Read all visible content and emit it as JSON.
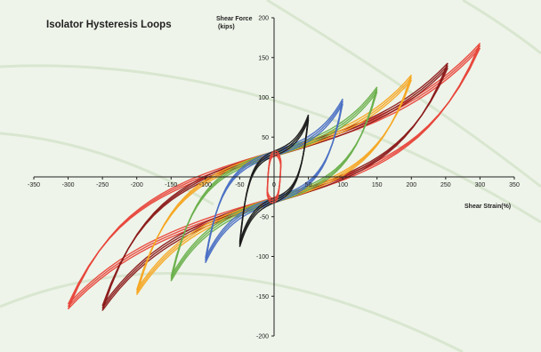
{
  "chart_data": {
    "type": "line",
    "title": "Isolator Hysteresis Loops",
    "xlabel": "Shear Strain(%)",
    "ylabel_line1": "Shear Force",
    "ylabel_line2": "(kips)",
    "xlim": [
      -350,
      350
    ],
    "ylim": [
      -200,
      200
    ],
    "x_ticks": [
      "-350",
      "-300",
      "-250",
      "-200",
      "-150",
      "-100",
      "-50",
      "0",
      "50",
      "100",
      "150",
      "200",
      "250",
      "300",
      "350"
    ],
    "y_ticks": [
      "-200",
      "-150",
      "-100",
      "-50",
      "0",
      "50",
      "100",
      "150",
      "200"
    ],
    "grid": false,
    "legend": "none",
    "series": [
      {
        "color": "#e8453a",
        "values": [
          [
            300,
            165
          ],
          [
            -300,
            -163
          ]
        ]
      },
      {
        "color": "#8b1a1a",
        "values": [
          [
            253,
            140
          ],
          [
            -250,
            -165
          ]
        ]
      },
      {
        "color": "#f5a623",
        "values": [
          [
            200,
            125
          ],
          [
            -200,
            -145
          ]
        ]
      },
      {
        "color": "#6ab04c",
        "values": [
          [
            150,
            110
          ],
          [
            -150,
            -128
          ]
        ]
      },
      {
        "color": "#4a6fc4",
        "values": [
          [
            100,
            95
          ],
          [
            -100,
            -105
          ]
        ]
      },
      {
        "color": "#1a1a1a",
        "values": [
          [
            50,
            75
          ],
          [
            -50,
            -85
          ]
        ]
      },
      {
        "color": "#e8453a",
        "values": [
          [
            10,
            17
          ],
          [
            -10,
            -20
          ]
        ]
      }
    ]
  },
  "colors": {
    "background": "#eef4e9",
    "curves": "#d9e6d0",
    "axis": "#222222"
  }
}
